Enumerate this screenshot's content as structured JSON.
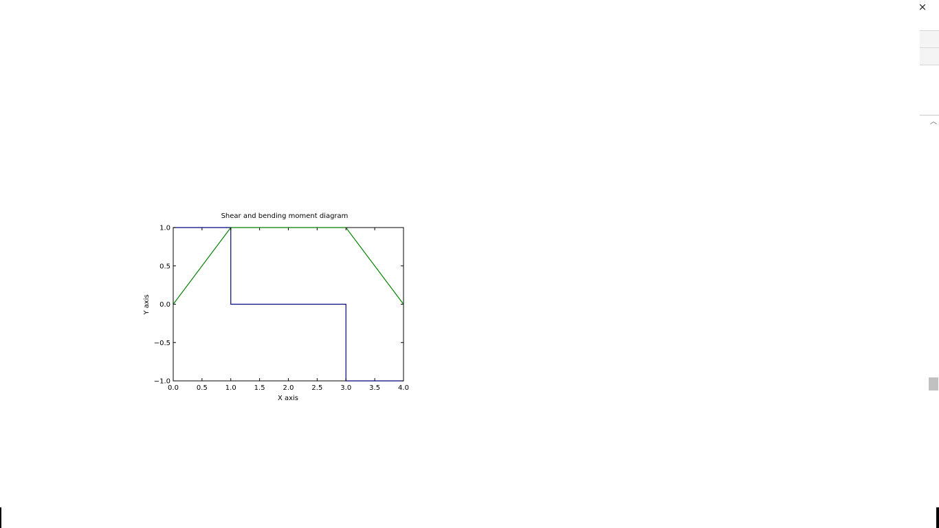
{
  "window": {
    "close_symbol": "×",
    "close_icon": "close-icon",
    "scroll_up_symbol": "︿",
    "scroll_up_icon": "chevron-up-icon"
  },
  "chart_data": {
    "type": "line",
    "title": "Shear and bending moment diagram",
    "xlabel": "X axis",
    "ylabel": "Y axis",
    "xlim": [
      0.0,
      4.0
    ],
    "ylim": [
      -1.0,
      1.0
    ],
    "xticks": [
      "0.0",
      "0.5",
      "1.0",
      "1.5",
      "2.0",
      "2.5",
      "3.0",
      "3.5",
      "4.0"
    ],
    "yticks": [
      "1.0",
      "0.5",
      "0.0",
      "−0.5",
      "−1.0"
    ],
    "xtick_values": [
      0.0,
      0.5,
      1.0,
      1.5,
      2.0,
      2.5,
      3.0,
      3.5,
      4.0
    ],
    "ytick_values": [
      1.0,
      0.5,
      0.0,
      -0.5,
      -1.0
    ],
    "grid": false,
    "series": [
      {
        "color": "#000080",
        "x": [
          0.0,
          1.0,
          1.0,
          3.0,
          3.0,
          4.0
        ],
        "y": [
          1.0,
          1.0,
          0.0,
          0.0,
          -1.0,
          -1.0
        ]
      },
      {
        "color": "#008000",
        "x": [
          0.0,
          1.0,
          3.0,
          4.0
        ],
        "y": [
          0.0,
          1.0,
          1.0,
          0.0
        ]
      }
    ]
  }
}
